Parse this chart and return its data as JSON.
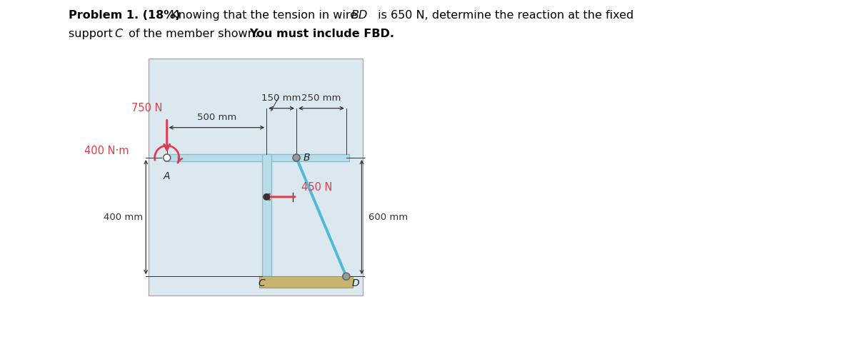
{
  "bg_color": "#dce8f0",
  "member_color": "#b8dce8",
  "member_edge": "#8bbccc",
  "wire_color": "#50b8d8",
  "red_color": "#d84050",
  "dim_color": "#333333",
  "ground_color": "#c8b46e",
  "ground_edge": "#999955",
  "force_750_label": "750 N",
  "force_450_label": "450 N",
  "moment_label": "400 N·m",
  "dist_500_label": "500 mm",
  "dist_150_label": "150 mm",
  "dist_250_label": "250 mm",
  "dist_400_label": "400 mm",
  "dist_600_label": "600 mm",
  "label_A": "A",
  "label_B": "B",
  "label_C": "C",
  "label_D": "D"
}
